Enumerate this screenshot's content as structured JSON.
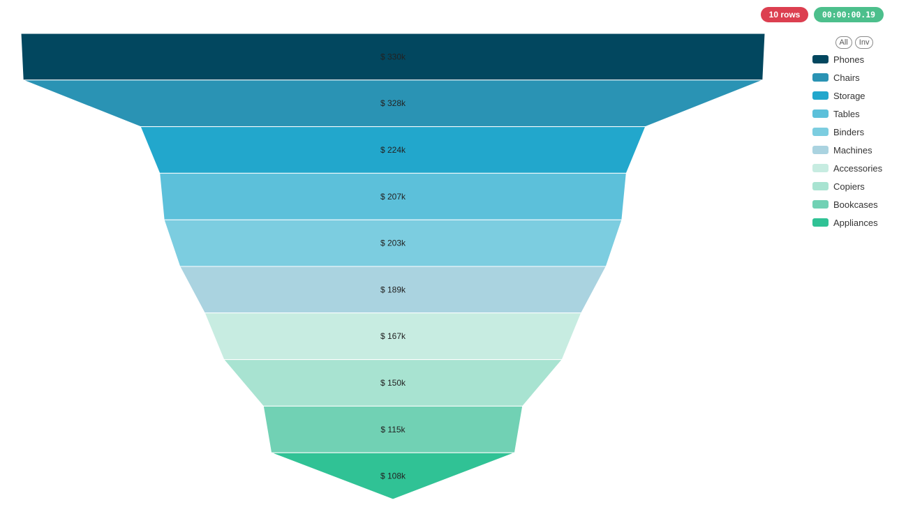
{
  "header": {
    "rows_badge": "10 rows",
    "timer_badge": "00:00:00.19"
  },
  "legend": {
    "all_label": "All",
    "inv_label": "Inv"
  },
  "colors": {
    "rows_badge": "#dc3f50",
    "timer_badge": "#4cbf8c"
  },
  "chart_data": {
    "type": "funnel",
    "unit_prefix": "$",
    "categories": [
      "Phones",
      "Chairs",
      "Storage",
      "Tables",
      "Binders",
      "Machines",
      "Accessories",
      "Copiers",
      "Bookcases",
      "Appliances"
    ],
    "values": [
      330,
      328,
      224,
      207,
      203,
      189,
      167,
      150,
      115,
      108
    ],
    "value_labels": [
      "$ 330k",
      "$ 328k",
      "$ 224k",
      "$ 207k",
      "$ 203k",
      "$ 189k",
      "$ 167k",
      "$ 150k",
      "$ 115k",
      "$ 108k"
    ],
    "colors": [
      "#02475f",
      "#2a93b4",
      "#22a7cc",
      "#5cc0da",
      "#7ccde0",
      "#aad3e0",
      "#c7ece1",
      "#a8e3d1",
      "#71d1b4",
      "#30c295"
    ],
    "legend_position": "right"
  }
}
